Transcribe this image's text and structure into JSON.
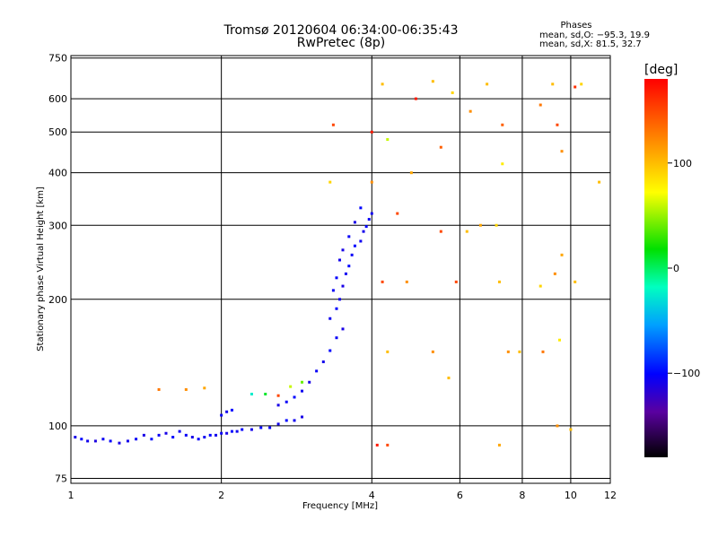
{
  "chart_data": {
    "type": "scatter",
    "title": "Tromsø 20120604 06:34:00-06:35:43",
    "subtitle": "RwPretec (8p)",
    "xlabel": "Frequency [MHz]",
    "ylabel": "Stationary phase Virtual Height [km]",
    "x_scale": "log",
    "y_scale": "log",
    "xlim": [
      1,
      12
    ],
    "ylim": [
      73,
      760
    ],
    "x_ticks": [
      1,
      2,
      4,
      6,
      8,
      10,
      12
    ],
    "x_tick_labels": [
      "1",
      "2",
      "4",
      "6",
      "8",
      "10",
      "12"
    ],
    "y_ticks": [
      75,
      100,
      200,
      300,
      400,
      500,
      600,
      750
    ],
    "y_tick_labels": [
      "75",
      "100",
      "200",
      "300",
      "400",
      "500",
      "600",
      "750"
    ],
    "grid": true,
    "phases": {
      "heading": "Phases",
      "line_o": "mean, sd,O: −95.3, 19.9",
      "line_x": "mean, sd,X:  81.5, 32.7"
    },
    "colorbar": {
      "label": "[deg]",
      "range": [
        -180,
        180
      ],
      "ticks": [
        100,
        0,
        -100
      ],
      "tick_labels": [
        "100",
        "0",
        "−100"
      ]
    },
    "o_trace_points": [
      [
        1.02,
        94,
        -110
      ],
      [
        1.05,
        93,
        -100
      ],
      [
        1.08,
        92,
        -108
      ],
      [
        1.12,
        92,
        -112
      ],
      [
        1.16,
        93,
        -105
      ],
      [
        1.2,
        92,
        -102
      ],
      [
        1.25,
        91,
        -110
      ],
      [
        1.3,
        92,
        -108
      ],
      [
        1.35,
        93,
        -104
      ],
      [
        1.4,
        95,
        -110
      ],
      [
        1.45,
        93,
        -98
      ],
      [
        1.5,
        95,
        -105
      ],
      [
        1.55,
        96,
        -110
      ],
      [
        1.6,
        94,
        -100
      ],
      [
        1.65,
        97,
        -106
      ],
      [
        1.7,
        95,
        -104
      ],
      [
        1.75,
        94,
        -110
      ],
      [
        1.8,
        93,
        -102
      ],
      [
        1.85,
        94,
        -106
      ],
      [
        1.9,
        95,
        -100
      ],
      [
        1.95,
        95,
        -108
      ],
      [
        2.0,
        96,
        -104
      ],
      [
        2.05,
        96,
        -110
      ],
      [
        2.1,
        97,
        -100
      ],
      [
        2.15,
        97,
        -106
      ],
      [
        2.2,
        98,
        -102
      ],
      [
        2.3,
        98,
        -108
      ],
      [
        2.4,
        99,
        -100
      ],
      [
        2.5,
        99,
        -104
      ],
      [
        2.6,
        101,
        -108
      ],
      [
        2.7,
        103,
        -100
      ],
      [
        2.8,
        103,
        -106
      ],
      [
        2.9,
        105,
        -110
      ],
      [
        2.0,
        106,
        -104
      ],
      [
        2.05,
        108,
        -108
      ],
      [
        2.1,
        109,
        -100
      ],
      [
        2.6,
        112,
        -110
      ],
      [
        2.7,
        114,
        -104
      ],
      [
        2.8,
        117,
        -100
      ],
      [
        2.9,
        121,
        -106
      ],
      [
        3.0,
        127,
        -110
      ],
      [
        3.1,
        135,
        -104
      ],
      [
        3.2,
        142,
        -108
      ],
      [
        3.3,
        151,
        -100
      ],
      [
        3.4,
        162,
        -104
      ],
      [
        3.5,
        170,
        -110
      ],
      [
        3.3,
        180,
        -106
      ],
      [
        3.4,
        190,
        -100
      ],
      [
        3.45,
        200,
        -108
      ],
      [
        3.35,
        210,
        -104
      ],
      [
        3.5,
        215,
        -110
      ],
      [
        3.4,
        225,
        -102
      ],
      [
        3.55,
        230,
        -106
      ],
      [
        3.6,
        240,
        -100
      ],
      [
        3.45,
        248,
        -108
      ],
      [
        3.65,
        255,
        -104
      ],
      [
        3.5,
        262,
        -110
      ],
      [
        3.7,
        268,
        -100
      ],
      [
        3.8,
        275,
        -106
      ],
      [
        3.6,
        282,
        -104
      ],
      [
        3.85,
        290,
        -108
      ],
      [
        3.9,
        298,
        -100
      ],
      [
        3.7,
        305,
        -110
      ],
      [
        3.95,
        310,
        -104
      ],
      [
        4.0,
        320,
        -106
      ],
      [
        3.8,
        330,
        -100
      ]
    ],
    "x_trace_points": [
      [
        1.5,
        122,
        130
      ],
      [
        1.7,
        122,
        120
      ],
      [
        1.85,
        123,
        110
      ],
      [
        2.3,
        119,
        -25
      ],
      [
        2.45,
        119,
        10
      ],
      [
        2.6,
        118,
        150
      ],
      [
        2.75,
        124,
        60
      ],
      [
        2.9,
        127,
        40
      ],
      [
        3.3,
        380,
        90
      ],
      [
        3.35,
        520,
        150
      ],
      [
        4.0,
        500,
        170
      ],
      [
        4.0,
        380,
        120
      ],
      [
        4.2,
        650,
        100
      ],
      [
        4.3,
        480,
        60
      ],
      [
        4.5,
        320,
        150
      ],
      [
        4.8,
        400,
        110
      ],
      [
        4.9,
        600,
        170
      ],
      [
        5.3,
        660,
        100
      ],
      [
        5.5,
        460,
        140
      ],
      [
        5.8,
        620,
        90
      ],
      [
        6.3,
        560,
        120
      ],
      [
        6.8,
        650,
        100
      ],
      [
        7.3,
        420,
        80
      ],
      [
        7.3,
        520,
        140
      ],
      [
        8.7,
        580,
        130
      ],
      [
        9.2,
        650,
        100
      ],
      [
        9.4,
        520,
        150
      ],
      [
        9.6,
        450,
        120
      ],
      [
        10.2,
        640,
        160
      ],
      [
        10.5,
        650,
        90
      ],
      [
        11.4,
        380,
        100
      ],
      [
        4.2,
        220,
        150
      ],
      [
        4.3,
        150,
        100
      ],
      [
        5.3,
        150,
        120
      ],
      [
        5.5,
        290,
        150
      ],
      [
        6.2,
        290,
        100
      ],
      [
        6.6,
        300,
        110
      ],
      [
        7.1,
        300,
        90
      ],
      [
        7.5,
        150,
        120
      ],
      [
        7.9,
        150,
        100
      ],
      [
        8.8,
        150,
        130
      ],
      [
        9.5,
        160,
        80
      ],
      [
        9.6,
        255,
        110
      ],
      [
        10.2,
        220,
        100
      ],
      [
        4.7,
        220,
        120
      ],
      [
        5.9,
        220,
        150
      ],
      [
        7.2,
        220,
        100
      ],
      [
        8.7,
        215,
        90
      ],
      [
        9.3,
        230,
        120
      ],
      [
        5.7,
        130,
        100
      ],
      [
        4.1,
        90,
        170
      ],
      [
        4.3,
        90,
        150
      ],
      [
        7.2,
        90,
        110
      ],
      [
        9.4,
        100,
        120
      ],
      [
        10.0,
        98,
        100
      ]
    ]
  }
}
